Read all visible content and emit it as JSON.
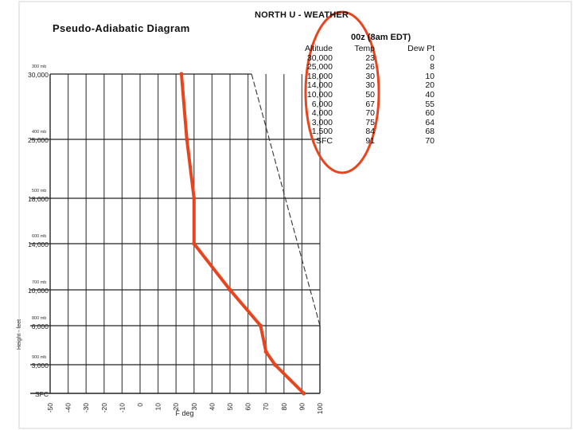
{
  "header": {
    "brand": "NORTH U - WEATHER",
    "title": "Pseudo-Adiabatic Diagram",
    "sounding_time": "00z (8am EDT)"
  },
  "sounding_table": {
    "columns": [
      "Altitude",
      "Temp",
      "Dew Pt"
    ],
    "rows": [
      {
        "altitude": "30,000",
        "temp": "23",
        "dewpt": "0"
      },
      {
        "altitude": "25,000",
        "temp": "26",
        "dewpt": "8"
      },
      {
        "altitude": "18,000",
        "temp": "30",
        "dewpt": "10"
      },
      {
        "altitude": "14,000",
        "temp": "30",
        "dewpt": "20"
      },
      {
        "altitude": "10,000",
        "temp": "50",
        "dewpt": "40"
      },
      {
        "altitude": "6,000",
        "temp": "67",
        "dewpt": "55"
      },
      {
        "altitude": "4,000",
        "temp": "70",
        "dewpt": "60"
      },
      {
        "altitude": "3,000",
        "temp": "75",
        "dewpt": "64"
      },
      {
        "altitude": "1,500",
        "temp": "84",
        "dewpt": "68"
      },
      {
        "altitude": "SFC",
        "temp": "91",
        "dewpt": "70"
      }
    ]
  },
  "chart_data": {
    "type": "line",
    "title": "Pseudo-Adiabatic Diagram",
    "xlabel": "F deg",
    "ylabel": "Height - feet",
    "xlim": [
      -50,
      100
    ],
    "x_ticks": [
      "-50",
      "-40",
      "-30",
      "-20",
      "-10",
      "0",
      "10",
      "20",
      "30",
      "40",
      "50",
      "60",
      "70",
      "80",
      "90",
      "100"
    ],
    "y_levels": [
      {
        "pressure": "300 mb",
        "height": "30,000"
      },
      {
        "pressure": "400 mb",
        "height": "25,000"
      },
      {
        "pressure": "500 mb",
        "height": "18,000"
      },
      {
        "pressure": "600 mb",
        "height": "14,000"
      },
      {
        "pressure": "700 mb",
        "height": "10,000"
      },
      {
        "pressure": "800 mb",
        "height": "6,000"
      },
      {
        "pressure": "900 mb",
        "height": "3,000"
      },
      {
        "pressure": "",
        "height": "SFC"
      }
    ],
    "grid": true,
    "series": [
      {
        "name": "",
        "color": "#e8451e",
        "points": [
          {
            "level": "SFC",
            "temp": 91
          },
          {
            "level": "3,000",
            "temp": 75
          },
          {
            "level": "4,000",
            "temp": 70
          },
          {
            "level": "6,000",
            "temp": 67
          },
          {
            "level": "10,000",
            "temp": 50
          },
          {
            "level": "14,000",
            "temp": 30
          },
          {
            "level": "18,000",
            "temp": 30
          },
          {
            "level": "25,000",
            "temp": 26
          },
          {
            "level": "30,000",
            "temp": 23
          }
        ]
      }
    ],
    "dry_adiabat": [
      {
        "level": "30,000",
        "temp": 62
      },
      {
        "level": "6,000",
        "temp": 100
      }
    ],
    "annotation_circle_color": "#e8451e"
  }
}
